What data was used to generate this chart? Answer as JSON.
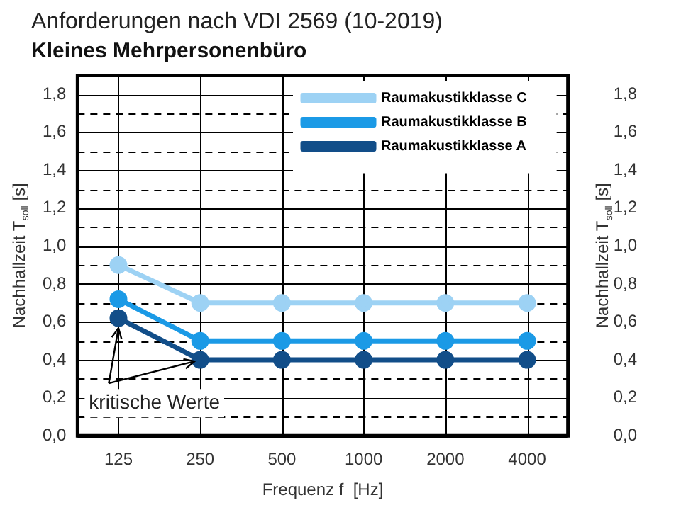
{
  "chart_data": {
    "type": "line",
    "title": "Anforderungen nach VDI 2569 (10-2019)",
    "subtitle": "Kleines Mehrpersonenbüro",
    "xlabel": "Frequenz f  [Hz]",
    "ylabel": "Nachhallzeit T$_{soll}$ [s]",
    "y2label": "Nachhallzeit T$_{soll}$ [s]",
    "categories": [
      "125",
      "250",
      "500",
      "1000",
      "2000",
      "4000"
    ],
    "series": [
      {
        "name": "Raumakustikklasse C",
        "color": "#9dd2f4",
        "values": [
          0.9,
          0.7,
          0.7,
          0.7,
          0.7,
          0.7
        ]
      },
      {
        "name": "Raumakustikklasse B",
        "color": "#1b9ae6",
        "values": [
          0.72,
          0.5,
          0.5,
          0.5,
          0.5,
          0.5
        ]
      },
      {
        "name": "Raumakustikklasse A",
        "color": "#124e89",
        "values": [
          0.62,
          0.4,
          0.4,
          0.4,
          0.4,
          0.4
        ]
      }
    ],
    "ylim": [
      0,
      1.9
    ],
    "yticks": [
      {
        "value": 0,
        "label": "0,0"
      },
      {
        "value": 0.1,
        "label": null
      },
      {
        "value": 0.2,
        "label": "0,2"
      },
      {
        "value": 0.3,
        "label": null
      },
      {
        "value": 0.4,
        "label": "0,4"
      },
      {
        "value": 0.5,
        "label": null
      },
      {
        "value": 0.6,
        "label": "0,6"
      },
      {
        "value": 0.7,
        "label": null
      },
      {
        "value": 0.8,
        "label": "0,8"
      },
      {
        "value": 0.9,
        "label": null
      },
      {
        "value": 1,
        "label": "1,0"
      },
      {
        "value": 1.1,
        "label": null
      },
      {
        "value": 1.2,
        "label": "1,2"
      },
      {
        "value": 1.3,
        "label": null
      },
      {
        "value": 1.4,
        "label": "1,4"
      },
      {
        "value": 1.5,
        "label": null
      },
      {
        "value": 1.6,
        "label": "1,6"
      },
      {
        "value": 1.7,
        "label": null
      },
      {
        "value": 1.8,
        "label": "1,8"
      },
      {
        "value": 1.9,
        "label": null
      }
    ],
    "y2lim": [
      0,
      1.9
    ],
    "y2ticks": [
      {
        "value": 0,
        "label": "0,0"
      },
      {
        "value": 0.2,
        "label": "0,2"
      },
      {
        "value": 0.4,
        "label": "0,4"
      },
      {
        "value": 0.6,
        "label": "0,6"
      },
      {
        "value": 0.8,
        "label": "0,8"
      },
      {
        "value": 1,
        "label": "1,0"
      },
      {
        "value": 1.2,
        "label": "1,2"
      },
      {
        "value": 1.4,
        "label": "1,4"
      },
      {
        "value": 1.6,
        "label": "1,6"
      },
      {
        "value": 1.8,
        "label": "1,8"
      }
    ],
    "annotations": [
      {
        "text": "kritische Werte",
        "x": "125",
        "y": 0.62
      }
    ],
    "grid": true,
    "legend": "top right",
    "marker": "circle",
    "line_style": "solid"
  }
}
